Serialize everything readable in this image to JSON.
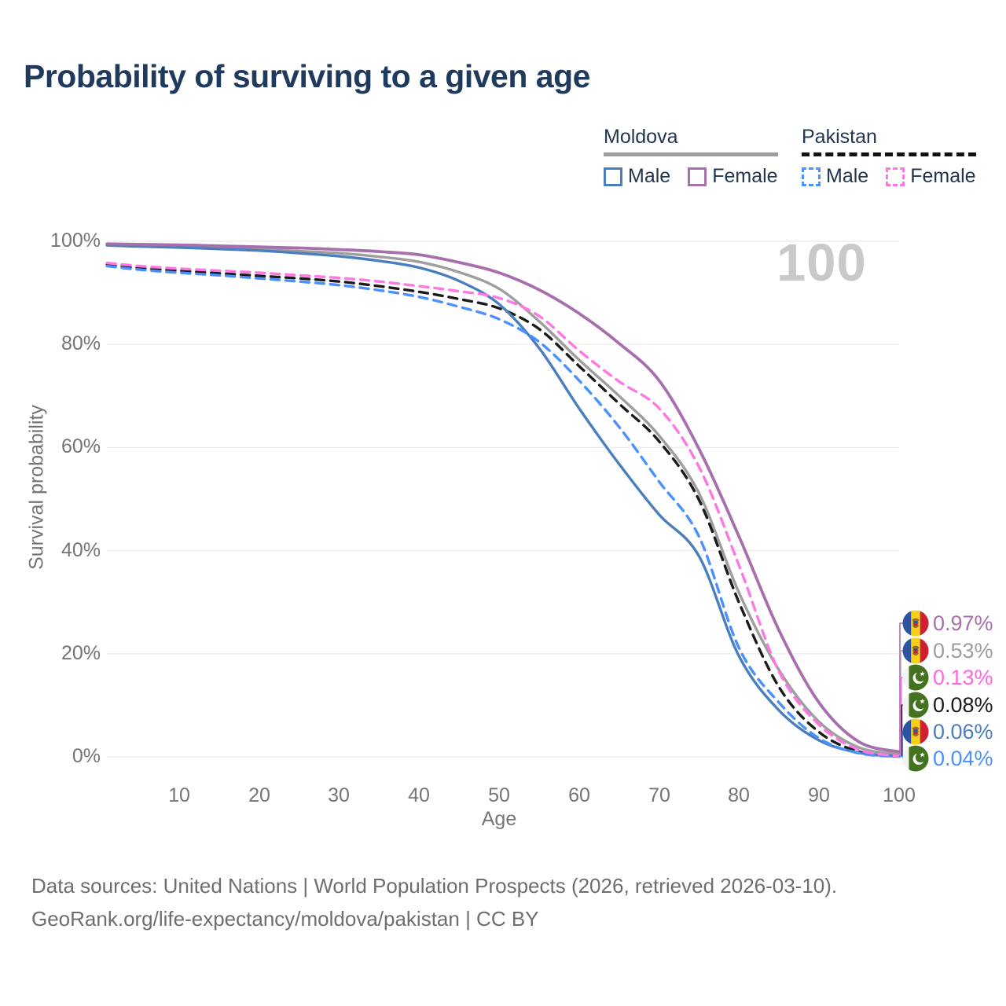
{
  "title": "Probability of surviving to a given age",
  "watermark": "100",
  "legend": {
    "groups": [
      {
        "country": "Moldova",
        "line_style": "solid",
        "underline_color": "#9e9e9e",
        "items": [
          {
            "label": "Male",
            "color": "#4a7ebe"
          },
          {
            "label": "Female",
            "color": "#a86fae"
          }
        ]
      },
      {
        "country": "Pakistan",
        "line_style": "dashed",
        "underline_color": "#111111",
        "items": [
          {
            "label": "Male",
            "color": "#4a90fe"
          },
          {
            "label": "Female",
            "color": "#ff77e3"
          }
        ]
      }
    ]
  },
  "axes": {
    "y_label": "Survival probability",
    "x_label": "Age",
    "y_ticks": [
      "0%",
      "20%",
      "40%",
      "60%",
      "80%",
      "100%"
    ],
    "x_ticks": [
      "10",
      "20",
      "30",
      "40",
      "50",
      "60",
      "70",
      "80",
      "90",
      "100"
    ]
  },
  "end_labels": [
    {
      "value": "0.97%",
      "color": "#a86fae",
      "flag": "moldova",
      "series": "md_female"
    },
    {
      "value": "0.53%",
      "color": "#9e9e9e",
      "flag": "moldova",
      "series": "md_all"
    },
    {
      "value": "0.13%",
      "color": "#ff66e0",
      "flag": "pakistan",
      "series": "pk_female"
    },
    {
      "value": "0.08%",
      "color": "#1a1a1a",
      "flag": "pakistan",
      "series": "pk_all"
    },
    {
      "value": "0.06%",
      "color": "#4a7ebe",
      "flag": "moldova",
      "series": "md_male"
    },
    {
      "value": "0.04%",
      "color": "#4a90fe",
      "flag": "pakistan",
      "series": "pk_male"
    }
  ],
  "footer": {
    "line1": "Data sources: United Nations | World Population Prospects (2026, retrieved 2026-03-10).",
    "line2": "GeoRank.org/life-expectancy/moldova/pakistan | CC BY"
  },
  "chart_data": {
    "type": "line",
    "title": "Probability of surviving to a given age",
    "xlabel": "Age",
    "ylabel": "Survival probability",
    "xlim": [
      0,
      100
    ],
    "ylim": [
      0,
      100
    ],
    "grid": "horizontal",
    "legend_position": "top-right",
    "x": [
      1,
      5,
      10,
      15,
      20,
      25,
      30,
      35,
      40,
      45,
      50,
      55,
      60,
      65,
      70,
      75,
      80,
      85,
      90,
      95,
      100
    ],
    "series": [
      {
        "id": "md_all",
        "country": "Moldova",
        "sex": "All",
        "style": "solid",
        "color": "#9e9e9e",
        "width": 3.4,
        "end_label": "0.53%",
        "values": [
          99.4,
          99.2,
          99.0,
          98.8,
          98.5,
          98.1,
          97.7,
          97.0,
          96.0,
          94.0,
          90.8,
          84.5,
          77.0,
          70.0,
          62.3,
          51.1,
          31.8,
          16.8,
          6.8,
          1.8,
          0.53
        ]
      },
      {
        "id": "pk_all",
        "country": "Pakistan",
        "sex": "All",
        "style": "dashed",
        "color": "#1a1a1a",
        "width": 3.4,
        "end_label": "0.08%",
        "values": [
          95.5,
          94.8,
          94.3,
          93.8,
          93.3,
          92.8,
          92.2,
          91.3,
          90.2,
          88.8,
          87.0,
          83.0,
          75.8,
          68.5,
          61.2,
          49.8,
          29.9,
          13.5,
          4.8,
          1.0,
          0.08
        ]
      },
      {
        "id": "md_male",
        "country": "Moldova",
        "sex": "Male",
        "style": "solid",
        "color": "#4a7ebe",
        "width": 3.4,
        "end_label": "0.06%",
        "values": [
          99.2,
          99.0,
          98.8,
          98.5,
          98.2,
          97.7,
          97.1,
          96.2,
          94.9,
          92.3,
          87.8,
          79.3,
          67.6,
          56.8,
          47.0,
          38.9,
          19.5,
          9.0,
          3.2,
          0.8,
          0.06
        ]
      },
      {
        "id": "pk_male",
        "country": "Pakistan",
        "sex": "Male",
        "style": "dashed",
        "color": "#4a90fe",
        "width": 3.4,
        "end_label": "0.04%",
        "values": [
          95.2,
          94.5,
          93.9,
          93.4,
          92.8,
          92.2,
          91.5,
          90.5,
          89.2,
          87.3,
          84.9,
          80.5,
          73.0,
          64.0,
          53.4,
          42.7,
          21.1,
          10.5,
          3.6,
          0.7,
          0.04
        ]
      },
      {
        "id": "pk_female",
        "country": "Pakistan",
        "sex": "Female",
        "style": "dashed",
        "color": "#ff77e3",
        "width": 3.4,
        "end_label": "0.13%",
        "values": [
          95.8,
          95.2,
          94.7,
          94.3,
          93.9,
          93.4,
          92.9,
          92.2,
          91.3,
          90.3,
          89.0,
          85.5,
          78.8,
          72.8,
          67.6,
          56.2,
          37.1,
          16.5,
          6.2,
          1.4,
          0.13
        ]
      },
      {
        "id": "md_female",
        "country": "Moldova",
        "sex": "Female",
        "style": "solid",
        "color": "#a86fae",
        "width": 3.8,
        "end_label": "0.97%",
        "values": [
          99.5,
          99.4,
          99.3,
          99.1,
          98.9,
          98.7,
          98.4,
          98.0,
          97.4,
          95.9,
          93.9,
          90.6,
          86.0,
          80.2,
          73.0,
          59.7,
          42.7,
          24.5,
          10.5,
          2.9,
          0.97
        ]
      }
    ]
  }
}
